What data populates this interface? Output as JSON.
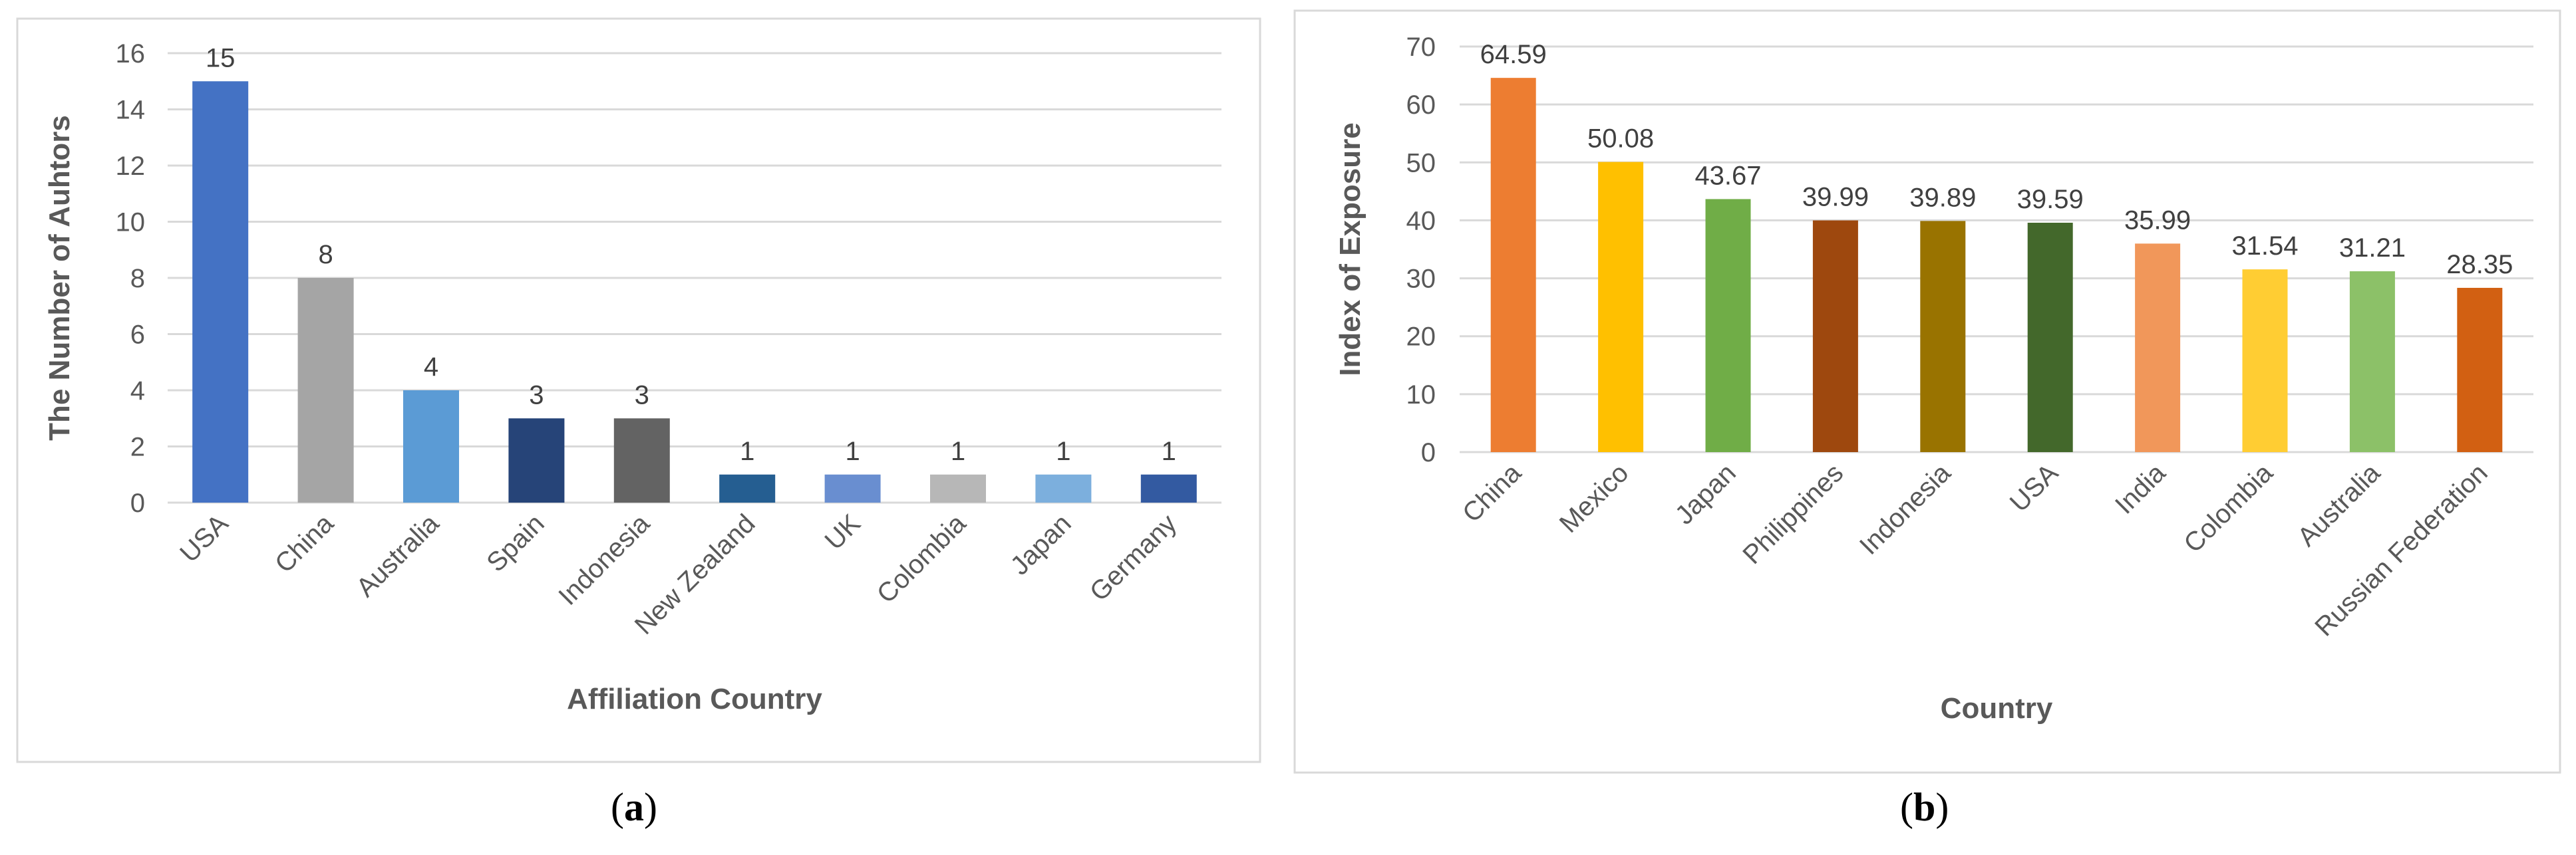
{
  "captions": [
    {
      "open": "(",
      "letter": "a",
      "close": ")"
    },
    {
      "open": "(",
      "letter": "b",
      "close": ")"
    }
  ],
  "chart_data": [
    {
      "type": "bar",
      "xlabel": "Affiliation Country",
      "ylabel": "The Number of Auhtors",
      "ylim": [
        0,
        16
      ],
      "yticks": [
        0,
        2,
        4,
        6,
        8,
        10,
        12,
        14,
        16
      ],
      "grid": true,
      "categories": [
        "USA",
        "China",
        "Australia",
        "Spain",
        "Indonesia",
        "New Zealand",
        "UK",
        "Colombia",
        "Japan",
        "Germany"
      ],
      "values": [
        15,
        8,
        4,
        3,
        3,
        1,
        1,
        1,
        1,
        1
      ],
      "data_labels": [
        "15",
        "8",
        "4",
        "3",
        "3",
        "1",
        "1",
        "1",
        "1",
        "1"
      ],
      "colors": [
        "#4472C4",
        "#A5A5A5",
        "#5B9BD5",
        "#264478",
        "#636363",
        "#255E91",
        "#698ED0",
        "#B7B7B7",
        "#7CAFDD",
        "#335AA1"
      ]
    },
    {
      "type": "bar",
      "xlabel": "Country",
      "ylabel": "Index of Exposure",
      "ylim": [
        0,
        70
      ],
      "yticks": [
        0,
        10,
        20,
        30,
        40,
        50,
        60,
        70
      ],
      "grid": true,
      "categories": [
        "China",
        "Mexico",
        "Japan",
        "Philippines",
        "Indonesia",
        "USA",
        "India",
        "Colombia",
        "Australia",
        "Russian Federation"
      ],
      "values": [
        64.59,
        50.08,
        43.67,
        39.99,
        39.89,
        39.59,
        35.99,
        31.54,
        31.21,
        28.35
      ],
      "data_labels": [
        "64.59",
        "50.08",
        "43.67",
        "39.99",
        "39.89",
        "39.59",
        "35.99",
        "31.54",
        "31.21",
        "28.35"
      ],
      "colors": [
        "#ED7D31",
        "#FFC000",
        "#70AD47",
        "#9E480E",
        "#997300",
        "#43682B",
        "#F1975A",
        "#FFCD33",
        "#8CC168",
        "#D26012"
      ]
    }
  ]
}
